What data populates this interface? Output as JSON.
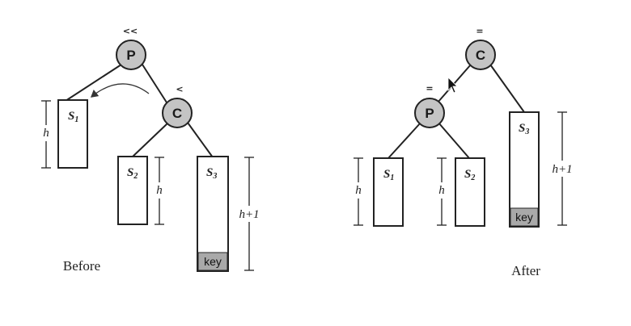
{
  "before": {
    "caption": "Before",
    "root": {
      "label": "P",
      "balance": "<<"
    },
    "child": {
      "label": "C",
      "balance": "<"
    },
    "subtrees": {
      "s1": {
        "base": "S",
        "sub": "1"
      },
      "s2": {
        "base": "S",
        "sub": "2"
      },
      "s3": {
        "base": "S",
        "sub": "3"
      }
    },
    "key_label": "key",
    "heights": {
      "s1": "h",
      "s2": "h",
      "s3": "h+1"
    }
  },
  "after": {
    "caption": "After",
    "root": {
      "label": "C",
      "balance": "="
    },
    "child": {
      "label": "P",
      "balance": "="
    },
    "subtrees": {
      "s1": {
        "base": "S",
        "sub": "1"
      },
      "s2": {
        "base": "S",
        "sub": "2"
      },
      "s3": {
        "base": "S",
        "sub": "3"
      }
    },
    "key_label": "key",
    "heights": {
      "s1": "h",
      "s2": "h",
      "s3": "h+1"
    }
  }
}
